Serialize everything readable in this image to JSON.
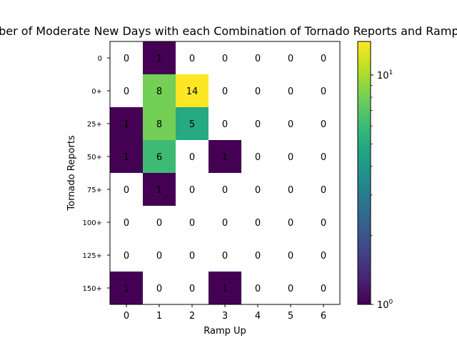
{
  "chart_data": {
    "type": "heatmap",
    "title": "Number of Moderate New Days with each Combination of Tornado Reports and Ramp Up",
    "xlabel": "Ramp Up",
    "ylabel": "Tornado Reports",
    "x_categories": [
      "0",
      "1",
      "2",
      "3",
      "4",
      "5",
      "6"
    ],
    "y_categories": [
      "0",
      "0+",
      "25+",
      "50+",
      "75+",
      "100+",
      "125+",
      "150+"
    ],
    "values": [
      [
        0,
        1,
        0,
        0,
        0,
        0,
        0
      ],
      [
        0,
        8,
        14,
        0,
        0,
        0,
        0
      ],
      [
        1,
        8,
        5,
        0,
        0,
        0,
        0
      ],
      [
        1,
        6,
        0,
        1,
        0,
        0,
        0
      ],
      [
        0,
        1,
        0,
        0,
        0,
        0,
        0
      ],
      [
        0,
        0,
        0,
        0,
        0,
        0,
        0
      ],
      [
        0,
        0,
        0,
        0,
        0,
        0,
        0
      ],
      [
        1,
        0,
        0,
        1,
        0,
        0,
        0
      ]
    ],
    "colormap": "viridis",
    "color_scale": "log",
    "color_range": [
      1,
      14
    ],
    "zero_color": "#ffffff",
    "colorbar": {
      "major_ticks": [
        1,
        10
      ],
      "major_tick_labels": [
        "10^0",
        "10^1"
      ],
      "minor_ticks": [
        2,
        3,
        4,
        5,
        6,
        7,
        8,
        9
      ]
    }
  }
}
